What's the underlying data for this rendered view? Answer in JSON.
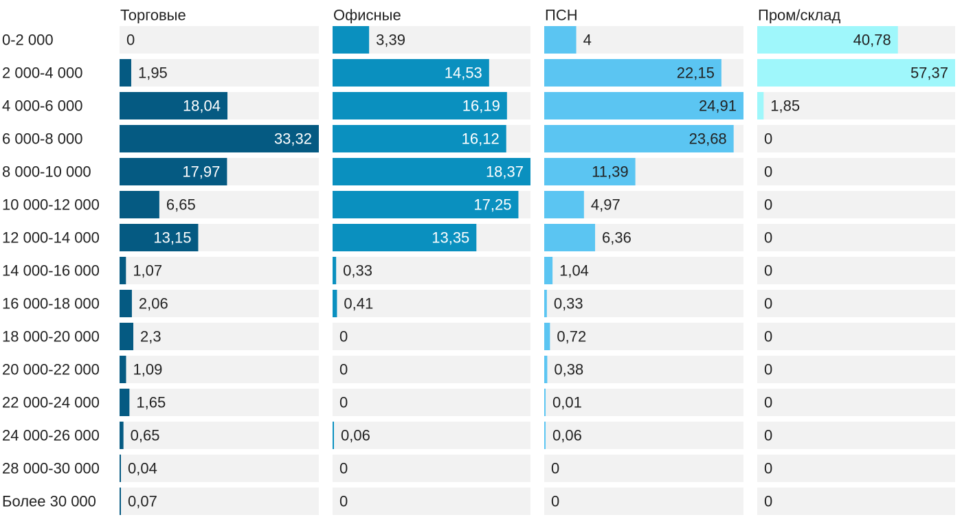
{
  "chart_data": {
    "type": "bar",
    "orientation": "horizontal",
    "layout": "small-multiples",
    "title": "",
    "xlabel": "",
    "ylabel": "",
    "categories": [
      "0-2 000",
      "2 000-4 000",
      "4 000-6 000",
      "6 000-8 000",
      "8 000-10 000",
      "10 000-12 000",
      "12 000-14 000",
      "14 000-16 000",
      "16 000-18 000",
      "18 000-20 000",
      "20 000-22 000",
      "22 000-24 000",
      "24 000-26 000",
      "28 000-30 000",
      "Более 30 000"
    ],
    "series": [
      {
        "name": "Торговые",
        "color": "#055a82",
        "xlim": [
          0,
          33.32
        ],
        "values": [
          0,
          1.95,
          18.04,
          33.32,
          17.97,
          6.65,
          13.15,
          1.07,
          2.06,
          2.3,
          1.09,
          1.65,
          0.65,
          0.04,
          0.07
        ],
        "labels": [
          "0",
          "1,95",
          "18,04",
          "33,32",
          "17,97",
          "6,65",
          "13,15",
          "1,07",
          "2,06",
          "2,3",
          "1,09",
          "1,65",
          "0,65",
          "0,04",
          "0,07"
        ]
      },
      {
        "name": "Офисные",
        "color": "#0a90bf",
        "xlim": [
          0,
          18.37
        ],
        "values": [
          3.39,
          14.53,
          16.19,
          16.12,
          18.37,
          17.25,
          13.35,
          0.33,
          0.41,
          0,
          0,
          0,
          0.06,
          0,
          0
        ],
        "labels": [
          "3,39",
          "14,53",
          "16,19",
          "16,12",
          "18,37",
          "17,25",
          "13,35",
          "0,33",
          "0,41",
          "0",
          "0",
          "0",
          "0,06",
          "0",
          "0"
        ]
      },
      {
        "name": "ПСН",
        "color": "#5bc5f2",
        "xlim": [
          0,
          24.91
        ],
        "values": [
          4,
          22.15,
          24.91,
          23.68,
          11.39,
          4.97,
          6.36,
          1.04,
          0.33,
          0.72,
          0.38,
          0.01,
          0.06,
          0,
          0
        ],
        "labels": [
          "4",
          "22,15",
          "24,91",
          "23,68",
          "11,39",
          "4,97",
          "6,36",
          "1,04",
          "0,33",
          "0,72",
          "0,38",
          "0,01",
          "0,06",
          "0",
          "0"
        ]
      },
      {
        "name": "Пром/склад",
        "color": "#9ff7fb",
        "xlim": [
          0,
          57.37
        ],
        "values": [
          40.78,
          57.37,
          1.85,
          0,
          0,
          0,
          0,
          0,
          0,
          0,
          0,
          0,
          0,
          0,
          0
        ],
        "labels": [
          "40,78",
          "57,37",
          "1,85",
          "0",
          "0",
          "0",
          "0",
          "0",
          "0",
          "0",
          "0",
          "0",
          "0",
          "0",
          "0"
        ]
      }
    ],
    "grid": false,
    "legend": "none",
    "background_track_color": "#f2f2f2"
  }
}
